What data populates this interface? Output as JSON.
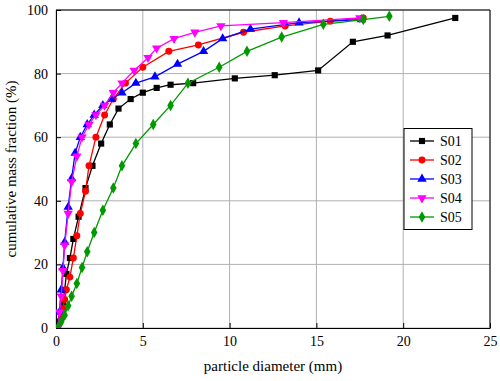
{
  "chart_data": {
    "type": "line",
    "x_label": "particle diameter (mm)",
    "y_label": "cumulative mass fraction (%)",
    "xlim": [
      0,
      25
    ],
    "xticks": [
      0,
      5,
      10,
      15,
      20,
      25
    ],
    "ylim": [
      0,
      100
    ],
    "yticks": [
      0,
      20,
      40,
      60,
      80,
      100
    ],
    "grid": true,
    "legend": "right",
    "series": [
      {
        "name": "S01",
        "color": "#000000",
        "marker": "square",
        "x": [
          0.1,
          0.2,
          0.3,
          0.4,
          0.5,
          0.6,
          0.8,
          1.0,
          1.3,
          1.7,
          2.1,
          2.6,
          3.1,
          3.6,
          4.3,
          5.0,
          5.8,
          6.6,
          7.9,
          10.3,
          12.6,
          15.1,
          17.1,
          19.1,
          23.0
        ],
        "values": [
          0,
          2,
          5,
          8,
          12,
          17,
          22,
          28,
          35,
          44,
          51,
          58,
          64,
          69,
          72,
          74,
          75.5,
          76.5,
          77,
          78.5,
          79.5,
          81,
          90,
          92,
          97.5
        ]
      },
      {
        "name": "S02",
        "color": "#ff0000",
        "marker": "circle",
        "x": [
          0.1,
          0.3,
          0.4,
          0.5,
          0.6,
          0.8,
          1.0,
          1.2,
          1.4,
          1.7,
          1.9,
          2.3,
          2.8,
          3.3,
          4.0,
          5.0,
          6.5,
          8.2,
          10.8,
          13.2,
          15.8,
          17.7
        ],
        "values": [
          0,
          3,
          6,
          9,
          12,
          16,
          22,
          29,
          36,
          43,
          51,
          60,
          67,
          72,
          77,
          82,
          87,
          89,
          93,
          95,
          96.5,
          97.5
        ]
      },
      {
        "name": "S03",
        "color": "#0000ff",
        "marker": "triangle",
        "x": [
          0.1,
          0.2,
          0.3,
          0.4,
          0.5,
          0.7,
          0.9,
          1.1,
          1.4,
          1.8,
          2.2,
          2.7,
          3.2,
          3.8,
          4.6,
          5.7,
          7.0,
          8.5,
          9.6,
          11.2,
          14.0,
          17.6
        ],
        "values": [
          0,
          5,
          12,
          19,
          27,
          38,
          47,
          55,
          60,
          64,
          67,
          70,
          72,
          74,
          77,
          79,
          83,
          87,
          91,
          94,
          96,
          97
        ]
      },
      {
        "name": "S04",
        "color": "#ff00ff",
        "marker": "triangle-down",
        "x": [
          0.1,
          0.2,
          0.3,
          0.4,
          0.5,
          0.7,
          0.9,
          1.2,
          1.5,
          1.9,
          2.3,
          2.8,
          3.3,
          3.8,
          4.5,
          5.3,
          5.8,
          6.8,
          8.0,
          9.5,
          13.1,
          17.5
        ],
        "values": [
          0,
          5,
          10,
          18,
          26,
          36,
          46,
          54,
          60,
          64,
          67,
          70,
          74,
          77,
          81,
          85,
          88,
          91,
          93,
          95,
          96,
          97.5
        ]
      },
      {
        "name": "S05",
        "color": "#009900",
        "marker": "diamond",
        "x": [
          0.1,
          0.3,
          0.5,
          0.7,
          0.9,
          1.2,
          1.5,
          1.8,
          2.2,
          2.7,
          3.3,
          3.8,
          4.6,
          5.6,
          6.6,
          7.6,
          9.4,
          11.0,
          13.0,
          15.4,
          17.7,
          19.2
        ],
        "values": [
          0,
          2,
          4,
          7,
          10,
          14,
          19,
          24,
          30,
          37,
          44,
          51,
          58,
          64,
          70,
          77,
          82,
          87,
          91.5,
          95.5,
          97,
          98
        ]
      }
    ]
  }
}
